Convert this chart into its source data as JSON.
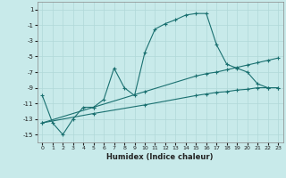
{
  "title": "",
  "xlabel": "Humidex (Indice chaleur)",
  "bg_color": "#c8eaea",
  "grid_color": "#b0d8d8",
  "line_color": "#1a7070",
  "xlim": [
    -0.5,
    23.5
  ],
  "ylim": [
    -16,
    2
  ],
  "yticks": [
    1,
    -1,
    -3,
    -5,
    -7,
    -9,
    -11,
    -13,
    -15
  ],
  "xticks": [
    0,
    1,
    2,
    3,
    4,
    5,
    6,
    7,
    8,
    9,
    10,
    11,
    12,
    13,
    14,
    15,
    16,
    17,
    18,
    19,
    20,
    21,
    22,
    23
  ],
  "curve1_x": [
    0,
    1,
    2,
    3,
    4,
    5,
    6,
    7,
    8,
    9,
    10,
    11,
    12,
    13,
    14,
    15,
    16,
    17,
    18,
    19,
    20,
    21,
    22,
    23
  ],
  "curve1_y": [
    -10,
    -13.5,
    -15,
    -13,
    -11.5,
    -11.5,
    -10.5,
    -6.5,
    -9,
    -10,
    -4.5,
    -1.5,
    -0.8,
    -0.3,
    0.3,
    0.5,
    0.5,
    -3.5,
    -6,
    -6.5,
    -7,
    -8.5,
    -9,
    -9
  ],
  "line2_x": [
    0,
    5,
    10,
    15,
    16,
    17,
    18,
    19,
    20,
    21,
    22,
    23
  ],
  "line2_y": [
    -13.5,
    -11.5,
    -9.5,
    -7.5,
    -7.2,
    -7.0,
    -6.7,
    -6.4,
    -6.1,
    -5.8,
    -5.5,
    -5.2
  ],
  "line3_x": [
    0,
    5,
    10,
    15,
    16,
    17,
    18,
    19,
    20,
    21,
    22,
    23
  ],
  "line3_y": [
    -13.5,
    -12.3,
    -11.2,
    -10.0,
    -9.8,
    -9.6,
    -9.5,
    -9.3,
    -9.2,
    -9.0,
    -9.0,
    -9.0
  ]
}
